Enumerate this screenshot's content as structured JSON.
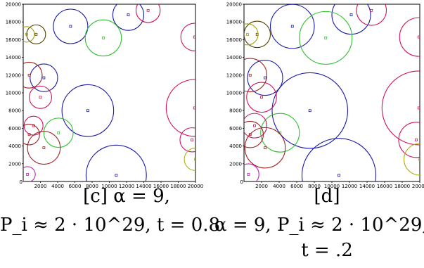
{
  "panels": [
    {
      "caption_lines": [
        "[c] α = 9,",
        "P_i ≈ 2 · 10^29, t = 0.8"
      ],
      "chart_data": {
        "type": "scatter",
        "title": "",
        "xlabel": "",
        "ylabel": "",
        "xlim": [
          0,
          20000
        ],
        "ylim": [
          0,
          20000
        ],
        "xticks": [
          2000,
          4000,
          6000,
          8000,
          10000,
          12000,
          14000,
          16000,
          18000,
          20000
        ],
        "yticks": [
          2000,
          4000,
          6000,
          8000,
          10000,
          12000,
          14000,
          16000,
          18000,
          20000
        ],
        "series": [
          {
            "color": "#1a1aa8",
            "points": [
              [
                10800,
                700
              ]
            ],
            "radius": 3500
          },
          {
            "color": "#1a1aa8",
            "points": [
              [
                7500,
                8000
              ]
            ],
            "radius": 3000
          },
          {
            "color": "#1a1aa8",
            "points": [
              [
                5500,
                17500
              ]
            ],
            "radius": 2000
          },
          {
            "color": "#1a1aa8",
            "points": [
              [
                12200,
                18800
              ]
            ],
            "radius": 1800
          },
          {
            "color": "#1a1aa8",
            "points": [
              [
                2400,
                11700
              ]
            ],
            "radius": 1600
          },
          {
            "color": "#30c030",
            "points": [
              [
                9300,
                16200
              ]
            ],
            "radius": 2100
          },
          {
            "color": "#30c030",
            "points": [
              [
                4100,
                5500
              ]
            ],
            "radius": 1700
          },
          {
            "color": "#d01060",
            "points": [
              [
                19900,
                8300
              ]
            ],
            "radius": 3300
          },
          {
            "color": "#d01060",
            "points": [
              [
                14500,
                19300
              ]
            ],
            "radius": 1400
          },
          {
            "color": "#d01060",
            "points": [
              [
                19900,
                16300
              ]
            ],
            "radius": 1600
          },
          {
            "color": "#d01060",
            "points": [
              [
                2000,
                9500
              ]
            ],
            "radius": 1300
          },
          {
            "color": "#d01060",
            "points": [
              [
                19600,
                4700
              ]
            ],
            "radius": 1400
          },
          {
            "color": "#d01060",
            "points": [
              [
                1200,
                6300
              ]
            ],
            "radius": 1100
          },
          {
            "color": "#a02020",
            "points": [
              [
                700,
                5300
              ]
            ],
            "radius": 1200
          },
          {
            "color": "#a02020",
            "points": [
              [
                2400,
                3800
              ]
            ],
            "radius": 1900
          },
          {
            "color": "#a02020",
            "points": [
              [
                700,
                12000
              ]
            ],
            "radius": 1500
          },
          {
            "color": "#504000",
            "points": [
              [
                1500,
                16600
              ]
            ],
            "radius": 1100
          },
          {
            "color": "#a0a010",
            "points": [
              [
                400,
                16600
              ]
            ],
            "radius": 900
          },
          {
            "color": "#b0b010",
            "points": [
              [
                20000,
                2500
              ]
            ],
            "radius": 1300
          },
          {
            "color": "#c020c0",
            "points": [
              [
                500,
                800
              ]
            ],
            "radius": 900
          }
        ]
      }
    },
    {
      "caption_lines": [
        "[d]",
        "α = 9, P_i ≈ 2 · 10^29,",
        "t = .2"
      ],
      "chart_data": {
        "type": "scatter",
        "title": "",
        "xlabel": "",
        "ylabel": "",
        "xlim": [
          0,
          20000
        ],
        "ylim": [
          0,
          20000
        ],
        "xticks": [
          2000,
          4000,
          6000,
          8000,
          10000,
          12000,
          14000,
          16000,
          18000,
          20000
        ],
        "yticks": [
          2000,
          4000,
          6000,
          8000,
          10000,
          12000,
          14000,
          16000,
          18000,
          20000
        ],
        "series": [
          {
            "color": "#1a1aa8",
            "points": [
              [
                10800,
                700
              ]
            ],
            "radius": 4200
          },
          {
            "color": "#1a1aa8",
            "points": [
              [
                7500,
                8000
              ]
            ],
            "radius": 4300
          },
          {
            "color": "#1a1aa8",
            "points": [
              [
                5500,
                17500
              ]
            ],
            "radius": 2500
          },
          {
            "color": "#1a1aa8",
            "points": [
              [
                12200,
                18800
              ]
            ],
            "radius": 2200
          },
          {
            "color": "#1a1aa8",
            "points": [
              [
                2400,
                11700
              ]
            ],
            "radius": 2000
          },
          {
            "color": "#30c030",
            "points": [
              [
                9300,
                16200
              ]
            ],
            "radius": 3000
          },
          {
            "color": "#30c030",
            "points": [
              [
                4100,
                5500
              ]
            ],
            "radius": 2200
          },
          {
            "color": "#d01060",
            "points": [
              [
                19900,
                8300
              ]
            ],
            "radius": 4200
          },
          {
            "color": "#d01060",
            "points": [
              [
                14500,
                19300
              ]
            ],
            "radius": 1700
          },
          {
            "color": "#d01060",
            "points": [
              [
                19900,
                16300
              ]
            ],
            "radius": 2200
          },
          {
            "color": "#d01060",
            "points": [
              [
                2000,
                9500
              ]
            ],
            "radius": 1700
          },
          {
            "color": "#d01060",
            "points": [
              [
                19600,
                4700
              ]
            ],
            "radius": 2000
          },
          {
            "color": "#d01060",
            "points": [
              [
                1200,
                6300
              ]
            ],
            "radius": 1400
          },
          {
            "color": "#a02020",
            "points": [
              [
                700,
                5300
              ]
            ],
            "radius": 1500
          },
          {
            "color": "#a02020",
            "points": [
              [
                2400,
                3800
              ]
            ],
            "radius": 2300
          },
          {
            "color": "#a02020",
            "points": [
              [
                700,
                12000
              ]
            ],
            "radius": 1900
          },
          {
            "color": "#504000",
            "points": [
              [
                1500,
                16600
              ]
            ],
            "radius": 1500
          },
          {
            "color": "#a0a010",
            "points": [
              [
                400,
                16600
              ]
            ],
            "radius": 1200
          },
          {
            "color": "#b0b010",
            "points": [
              [
                20000,
                2500
              ]
            ],
            "radius": 1800
          },
          {
            "color": "#c020c0",
            "points": [
              [
                500,
                800
              ]
            ],
            "radius": 1200
          }
        ]
      }
    }
  ]
}
